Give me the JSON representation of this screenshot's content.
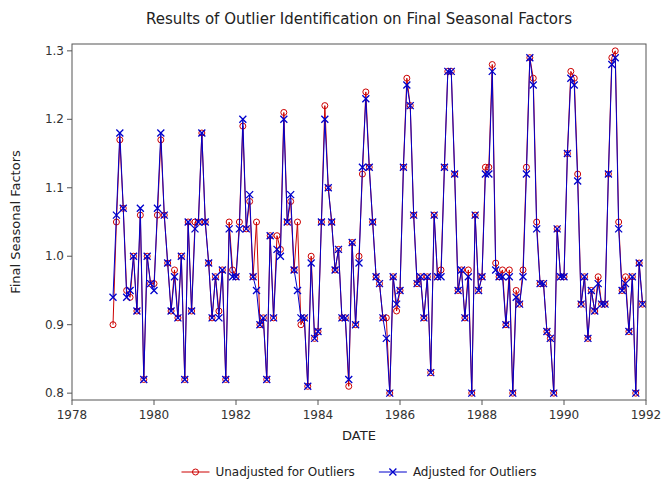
{
  "chart_data": {
    "type": "line",
    "title": "Results of Outlier Identification on Final Seasonal Factors",
    "x_label": "DATE",
    "y_label": "Final Seasonal Factors",
    "x": [
      1979,
      1979.0833333333333,
      1979.1666666666667,
      1979.25,
      1979.3333333333333,
      1979.4166666666667,
      1979.5,
      1979.5833333333333,
      1979.6666666666667,
      1979.75,
      1979.8333333333333,
      1979.9166666666667,
      1980,
      1980.0833333333333,
      1980.1666666666667,
      1980.25,
      1980.3333333333333,
      1980.4166666666667,
      1980.5,
      1980.5833333333333,
      1980.6666666666667,
      1980.75,
      1980.8333333333333,
      1980.9166666666667,
      1981,
      1981.0833333333333,
      1981.1666666666667,
      1981.25,
      1981.3333333333333,
      1981.4166666666667,
      1981.5,
      1981.5833333333333,
      1981.6666666666667,
      1981.75,
      1981.8333333333333,
      1981.9166666666667,
      1982,
      1982.0833333333333,
      1982.1666666666667,
      1982.25,
      1982.3333333333333,
      1982.4166666666667,
      1982.5,
      1982.5833333333333,
      1982.6666666666667,
      1982.75,
      1982.8333333333333,
      1982.9166666666667,
      1983,
      1983.0833333333333,
      1983.1666666666667,
      1983.25,
      1983.3333333333333,
      1983.4166666666667,
      1983.5,
      1983.5833333333333,
      1983.6666666666667,
      1983.75,
      1983.8333333333333,
      1983.9166666666667,
      1984,
      1984.0833333333333,
      1984.1666666666667,
      1984.25,
      1984.3333333333333,
      1984.4166666666667,
      1984.5,
      1984.5833333333333,
      1984.6666666666667,
      1984.75,
      1984.8333333333333,
      1984.9166666666667,
      1985,
      1985.0833333333333,
      1985.1666666666667,
      1985.25,
      1985.3333333333333,
      1985.4166666666667,
      1985.5,
      1985.5833333333333,
      1985.6666666666667,
      1985.75,
      1985.8333333333333,
      1985.9166666666667,
      1986,
      1986.0833333333333,
      1986.1666666666667,
      1986.25,
      1986.3333333333333,
      1986.4166666666667,
      1986.5,
      1986.5833333333333,
      1986.6666666666667,
      1986.75,
      1986.8333333333333,
      1986.9166666666667,
      1987,
      1987.0833333333333,
      1987.1666666666667,
      1987.25,
      1987.3333333333333,
      1987.4166666666667,
      1987.5,
      1987.5833333333333,
      1987.6666666666667,
      1987.75,
      1987.8333333333333,
      1987.9166666666667,
      1988,
      1988.0833333333333,
      1988.1666666666667,
      1988.25,
      1988.3333333333333,
      1988.4166666666667,
      1988.5,
      1988.5833333333333,
      1988.6666666666667,
      1988.75,
      1988.8333333333333,
      1988.9166666666667,
      1989,
      1989.0833333333333,
      1989.1666666666667,
      1989.25,
      1989.3333333333333,
      1989.4166666666667,
      1989.5,
      1989.5833333333333,
      1989.6666666666667,
      1989.75,
      1989.8333333333333,
      1989.9166666666667,
      1990,
      1990.0833333333333,
      1990.1666666666667,
      1990.25,
      1990.3333333333333,
      1990.4166666666667,
      1990.5,
      1990.5833333333333,
      1990.6666666666667,
      1990.75,
      1990.8333333333333,
      1990.9166666666667,
      1991,
      1991.0833333333333,
      1991.1666666666667,
      1991.25,
      1991.3333333333333,
      1991.4166666666667,
      1991.5,
      1991.5833333333333,
      1991.6666666666667,
      1991.75,
      1991.8333333333333,
      1991.9166666666667
    ],
    "series": [
      {
        "name": "Unadjusted for Outliers",
        "color": "#cc0000",
        "marker": "circle",
        "line_style": "solid",
        "values": [
          0.9,
          1.05,
          1.17,
          1.07,
          0.95,
          0.94,
          1.0,
          0.92,
          1.06,
          0.82,
          1.0,
          0.96,
          0.96,
          1.06,
          1.17,
          1.06,
          0.99,
          0.92,
          0.98,
          0.91,
          1.0,
          0.82,
          1.05,
          0.92,
          1.05,
          1.05,
          1.18,
          1.05,
          0.99,
          0.91,
          0.97,
          0.92,
          0.98,
          0.82,
          1.05,
          0.98,
          0.97,
          1.05,
          1.19,
          1.04,
          1.08,
          0.97,
          1.05,
          0.9,
          0.91,
          0.82,
          1.03,
          0.91,
          1.03,
          1.01,
          1.21,
          1.05,
          1.08,
          0.98,
          1.05,
          0.9,
          0.91,
          0.81,
          1.0,
          0.88,
          0.89,
          1.05,
          1.22,
          1.1,
          1.05,
          0.98,
          1.01,
          0.91,
          0.91,
          0.81,
          1.02,
          0.9,
          1.0,
          1.12,
          1.24,
          1.13,
          1.05,
          0.97,
          0.96,
          0.91,
          0.91,
          0.8,
          0.97,
          0.92,
          0.95,
          1.13,
          1.26,
          1.22,
          1.06,
          0.96,
          0.97,
          0.91,
          0.97,
          0.83,
          1.06,
          0.97,
          0.98,
          1.13,
          1.27,
          1.27,
          1.12,
          0.95,
          0.98,
          0.91,
          0.98,
          0.8,
          1.06,
          0.95,
          0.97,
          1.13,
          1.13,
          1.28,
          0.99,
          0.97,
          0.98,
          0.9,
          0.98,
          0.8,
          0.95,
          0.93,
          0.98,
          1.13,
          1.29,
          1.26,
          1.05,
          0.96,
          0.96,
          0.89,
          0.88,
          0.8,
          1.04,
          0.97,
          0.97,
          1.15,
          1.27,
          1.26,
          1.12,
          0.93,
          0.97,
          0.88,
          0.95,
          0.92,
          0.97,
          0.93,
          0.93,
          1.12,
          1.29,
          1.3,
          1.05,
          0.95,
          0.97,
          0.89,
          0.97,
          0.8,
          0.99,
          0.93
        ]
      },
      {
        "name": "Adjusted for Outliers",
        "color": "#0000cc",
        "marker": "x",
        "line_style": "solid",
        "values": [
          0.94,
          1.06,
          1.18,
          1.07,
          0.94,
          0.95,
          1.0,
          0.92,
          1.07,
          0.82,
          1.0,
          0.96,
          0.95,
          1.07,
          1.18,
          1.06,
          0.99,
          0.92,
          0.97,
          0.91,
          1.0,
          0.82,
          1.05,
          0.92,
          1.04,
          1.05,
          1.18,
          1.05,
          0.99,
          0.91,
          0.97,
          0.91,
          0.98,
          0.82,
          1.04,
          0.97,
          0.97,
          1.04,
          1.2,
          1.04,
          1.09,
          0.97,
          0.95,
          0.9,
          0.91,
          0.82,
          1.03,
          0.91,
          1.01,
          1.0,
          1.2,
          1.05,
          1.09,
          0.98,
          0.95,
          0.91,
          0.91,
          0.81,
          0.99,
          0.88,
          0.89,
          1.05,
          1.2,
          1.1,
          1.05,
          0.98,
          1.01,
          0.91,
          0.91,
          0.82,
          1.02,
          0.9,
          0.99,
          1.13,
          1.23,
          1.13,
          1.05,
          0.97,
          0.96,
          0.91,
          0.88,
          0.8,
          0.97,
          0.93,
          0.95,
          1.13,
          1.25,
          1.22,
          1.06,
          0.96,
          0.97,
          0.91,
          0.97,
          0.83,
          1.06,
          0.97,
          0.97,
          1.13,
          1.27,
          1.27,
          1.12,
          0.95,
          0.98,
          0.91,
          0.97,
          0.8,
          1.06,
          0.95,
          0.97,
          1.12,
          1.12,
          1.27,
          0.98,
          0.97,
          0.97,
          0.9,
          0.97,
          0.8,
          0.94,
          0.93,
          0.97,
          1.12,
          1.29,
          1.25,
          1.04,
          0.96,
          0.96,
          0.89,
          0.88,
          0.8,
          1.04,
          0.97,
          0.97,
          1.15,
          1.26,
          1.25,
          1.11,
          0.93,
          0.97,
          0.88,
          0.95,
          0.92,
          0.96,
          0.93,
          0.93,
          1.12,
          1.28,
          1.29,
          1.04,
          0.95,
          0.96,
          0.89,
          0.97,
          0.8,
          0.99,
          0.93
        ]
      }
    ],
    "xlim": [
      1978,
      1992
    ],
    "xticks": [
      1978,
      1980,
      1982,
      1984,
      1986,
      1988,
      1990,
      1992
    ],
    "ylim": [
      0.79,
      1.31
    ],
    "yticks": [
      0.8,
      0.9,
      {
        "value": 1,
        "label": "1.0"
      },
      1.1,
      1.2,
      1.3
    ],
    "grid": false,
    "legend": "bottom"
  }
}
